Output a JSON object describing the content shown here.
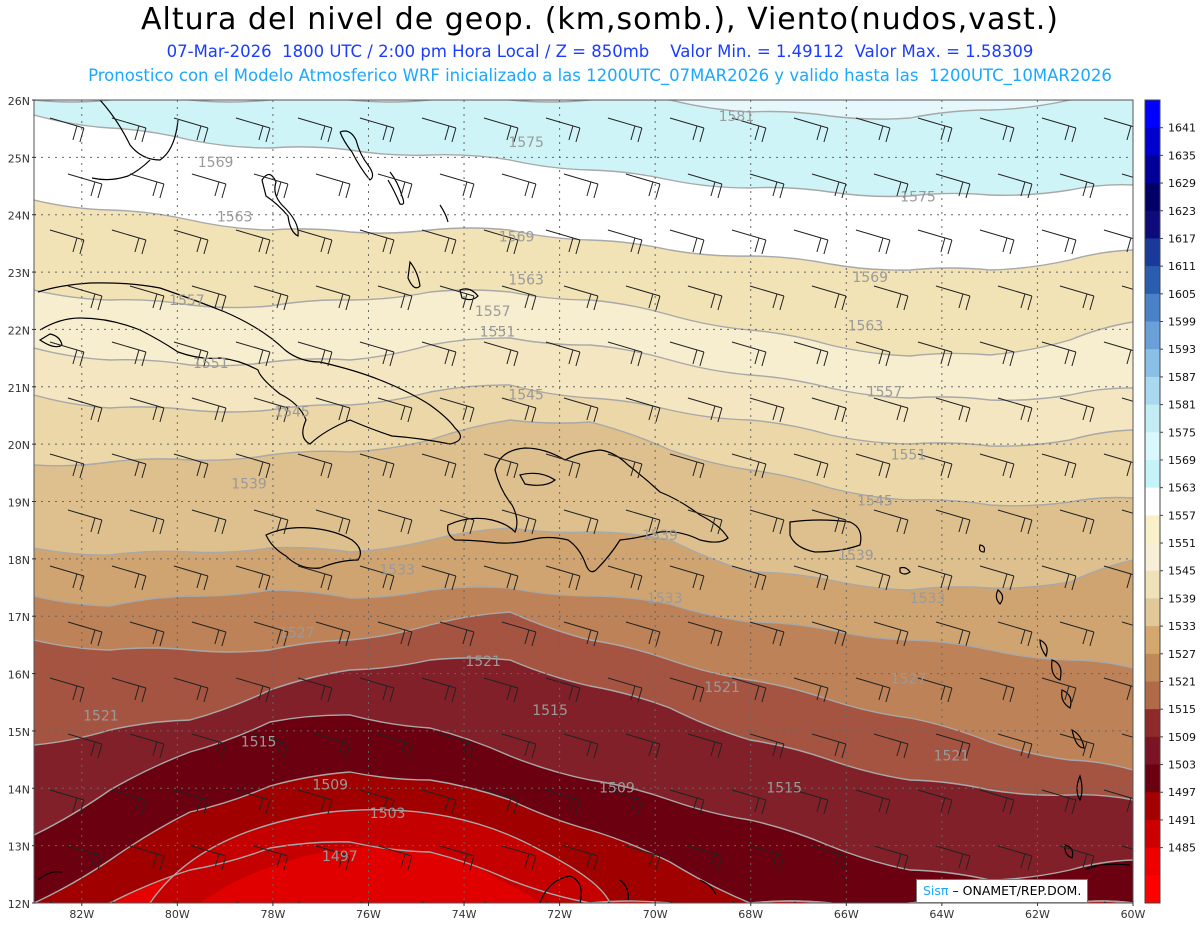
{
  "header": {
    "title": "Altura del nivel de geop. (km,somb.), Viento(nudos,vast.)",
    "line1": "07-Mar-2026  1800 UTC / 2:00 pm Hora Local / Z = 850mb    Valor Min. = 1.49112  Valor Max. = 1.58309",
    "line2": "Pronostico con el Modelo Atmosferico WRF inicializado a las 1200UTC_07MAR2026 y valido hasta las  1200UTC_10MAR2026"
  },
  "map": {
    "lat_labels": [
      "26N",
      "25N",
      "24N",
      "23N",
      "22N",
      "21N",
      "20N",
      "19N",
      "18N",
      "17N",
      "16N",
      "15N",
      "14N",
      "13N",
      "12N"
    ],
    "lon_labels": [
      "82W",
      "80W",
      "78W",
      "76W",
      "74W",
      "72W",
      "70W",
      "68W",
      "66W",
      "64W",
      "62W",
      "60W"
    ],
    "lat_range": [
      12,
      26
    ],
    "lon_range": [
      -83,
      -60
    ],
    "contour_levels": [
      "1497",
      "1503",
      "1509",
      "1515",
      "1521",
      "1527",
      "1533",
      "1539",
      "1545",
      "1551",
      "1557",
      "1563",
      "1569",
      "1575",
      "1581"
    ],
    "contour_labels": [
      {
        "text": "1581",
        "lon": -68.3,
        "lat": 25.7
      },
      {
        "text": "1575",
        "lon": -72.7,
        "lat": 25.25
      },
      {
        "text": "1575",
        "lon": -64.5,
        "lat": 24.3
      },
      {
        "text": "1569",
        "lon": -79.2,
        "lat": 24.9
      },
      {
        "text": "1569",
        "lon": -72.9,
        "lat": 23.6
      },
      {
        "text": "1569",
        "lon": -65.5,
        "lat": 22.9
      },
      {
        "text": "1563",
        "lon": -78.8,
        "lat": 23.95
      },
      {
        "text": "1563",
        "lon": -72.7,
        "lat": 22.85
      },
      {
        "text": "1563",
        "lon": -65.6,
        "lat": 22.05
      },
      {
        "text": "1557",
        "lon": -79.8,
        "lat": 22.5
      },
      {
        "text": "1557",
        "lon": -73.4,
        "lat": 22.3
      },
      {
        "text": "1557",
        "lon": -65.2,
        "lat": 20.9
      },
      {
        "text": "1551",
        "lon": -79.3,
        "lat": 21.4
      },
      {
        "text": "1551",
        "lon": -73.3,
        "lat": 21.95
      },
      {
        "text": "1551",
        "lon": -64.7,
        "lat": 19.8
      },
      {
        "text": "1545",
        "lon": -77.6,
        "lat": 20.55
      },
      {
        "text": "1545",
        "lon": -72.7,
        "lat": 20.85
      },
      {
        "text": "1545",
        "lon": -65.4,
        "lat": 19.0
      },
      {
        "text": "1539",
        "lon": -78.5,
        "lat": 19.3
      },
      {
        "text": "1539",
        "lon": -69.9,
        "lat": 18.4
      },
      {
        "text": "1539",
        "lon": -65.8,
        "lat": 18.05
      },
      {
        "text": "1533",
        "lon": -75.4,
        "lat": 17.8
      },
      {
        "text": "1533",
        "lon": -69.8,
        "lat": 17.3
      },
      {
        "text": "1533",
        "lon": -64.3,
        "lat": 17.3
      },
      {
        "text": "1527",
        "lon": -77.5,
        "lat": 16.7
      },
      {
        "text": "1527",
        "lon": -64.7,
        "lat": 15.9
      },
      {
        "text": "1521",
        "lon": -73.6,
        "lat": 16.2
      },
      {
        "text": "1521",
        "lon": -81.6,
        "lat": 15.25
      },
      {
        "text": "1521",
        "lon": -68.6,
        "lat": 15.75
      },
      {
        "text": "1521",
        "lon": -63.8,
        "lat": 14.55
      },
      {
        "text": "1515",
        "lon": -78.3,
        "lat": 14.8
      },
      {
        "text": "1515",
        "lon": -72.2,
        "lat": 15.35
      },
      {
        "text": "1515",
        "lon": -67.3,
        "lat": 14.0
      },
      {
        "text": "1509",
        "lon": -76.8,
        "lat": 14.05
      },
      {
        "text": "1509",
        "lon": -70.8,
        "lat": 14.0
      },
      {
        "text": "1503",
        "lon": -75.6,
        "lat": 13.55
      },
      {
        "text": "1497",
        "lon": -76.6,
        "lat": 12.8
      }
    ]
  },
  "colorbar": {
    "labels": [
      "1641",
      "1635",
      "1629",
      "1623",
      "1617",
      "1611",
      "1605",
      "1599",
      "1593",
      "1587",
      "1581",
      "1575",
      "1569",
      "1563",
      "1557",
      "1551",
      "1545",
      "1539",
      "1533",
      "1527",
      "1521",
      "1515",
      "1509",
      "1503",
      "1497",
      "1491",
      "1485"
    ],
    "colors": [
      "#0000ff",
      "#0000cc",
      "#000099",
      "#000066",
      "#0d0a7a",
      "#1a3a9a",
      "#2a5cb0",
      "#4a82c8",
      "#6aa0d8",
      "#8ac0e6",
      "#aad8ee",
      "#c4ecf4",
      "#d8f8fb",
      "#c4f4f8",
      "#ffffff",
      "#f8f0c8",
      "#f6eed6",
      "#f0e2b8",
      "#e2c898",
      "#d2a86e",
      "#c08a58",
      "#b06a48",
      "#8e2a2a",
      "#7a1424",
      "#6a0010",
      "#a40000",
      "#cc0000",
      "#ee0000",
      "#ff0000"
    ]
  },
  "credit": {
    "brand": "Sisπ",
    "text": "– ONAMET/REP.DOM."
  }
}
